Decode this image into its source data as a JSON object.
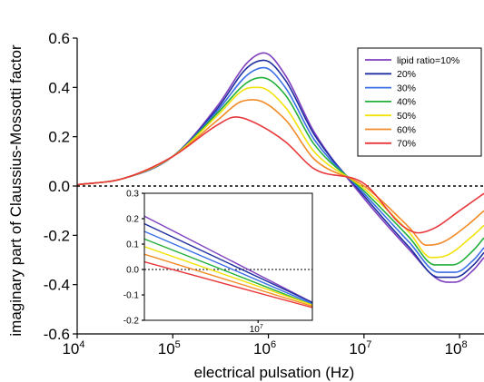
{
  "chart_data": [
    {
      "type": "line",
      "title": "",
      "xlabel": "electrical pulsation (Hz)",
      "ylabel": "imaginary part of Claussius-Mossotti factor",
      "xscale": "log",
      "xlim": [
        10000,
        180000000
      ],
      "ylim": [
        -0.6,
        0.6
      ],
      "xticks": [
        {
          "value": 10000,
          "base": "10",
          "exp": "4"
        },
        {
          "value": 100000,
          "base": "10",
          "exp": "5"
        },
        {
          "value": 1000000,
          "base": "10",
          "exp": "6"
        },
        {
          "value": 10000000,
          "base": "10",
          "exp": "7"
        },
        {
          "value": 100000000,
          "base": "10",
          "exp": "8"
        }
      ],
      "yticks": [
        {
          "value": -0.6,
          "label": "-0.6"
        },
        {
          "value": -0.4,
          "label": "-0.4"
        },
        {
          "value": -0.2,
          "label": "-0.2"
        },
        {
          "value": 0.0,
          "label": "0.0"
        },
        {
          "value": 0.2,
          "label": "0.2"
        },
        {
          "value": 0.4,
          "label": "0.4"
        },
        {
          "value": 0.6,
          "label": "0.6"
        }
      ],
      "reference_line": {
        "y": 0,
        "style": "dotted"
      },
      "grid": false,
      "legend_position": "top-right",
      "series": [
        {
          "name": "lipid ratio=10%",
          "color": "#7f3fbf",
          "x": [
            10000,
            30000,
            100000,
            300000,
            600000,
            900000,
            1500000,
            3000000,
            10000000,
            30000000,
            60000000,
            90000000,
            140000000,
            180000000
          ],
          "y": [
            0.005,
            0.03,
            0.12,
            0.33,
            0.5,
            0.54,
            0.45,
            0.22,
            -0.05,
            -0.26,
            -0.38,
            -0.39,
            -0.34,
            -0.29
          ]
        },
        {
          "name": "20%",
          "color": "#1f2f9f",
          "x": [
            10000,
            30000,
            100000,
            300000,
            600000,
            900000,
            1500000,
            3000000,
            10000000,
            30000000,
            60000000,
            90000000,
            140000000,
            180000000
          ],
          "y": [
            0.005,
            0.03,
            0.12,
            0.32,
            0.48,
            0.51,
            0.43,
            0.21,
            -0.04,
            -0.25,
            -0.37,
            -0.37,
            -0.32,
            -0.27
          ]
        },
        {
          "name": "30%",
          "color": "#3a6fe8",
          "x": [
            10000,
            30000,
            100000,
            300000,
            600000,
            900000,
            1500000,
            3000000,
            10000000,
            30000000,
            60000000,
            90000000,
            140000000,
            180000000
          ],
          "y": [
            0.005,
            0.03,
            0.12,
            0.31,
            0.45,
            0.48,
            0.4,
            0.19,
            -0.03,
            -0.23,
            -0.35,
            -0.35,
            -0.3,
            -0.25
          ]
        },
        {
          "name": "40%",
          "color": "#22b03a",
          "x": [
            10000,
            30000,
            100000,
            300000,
            600000,
            850000,
            1500000,
            3000000,
            10000000,
            30000000,
            55000000,
            85000000,
            140000000,
            180000000
          ],
          "y": [
            0.005,
            0.03,
            0.12,
            0.3,
            0.42,
            0.44,
            0.37,
            0.17,
            -0.02,
            -0.21,
            -0.32,
            -0.32,
            -0.26,
            -0.21
          ]
        },
        {
          "name": "50%",
          "color": "#f2e20a",
          "x": [
            10000,
            30000,
            100000,
            300000,
            550000,
            800000,
            1500000,
            3000000,
            10000000,
            30000000,
            50000000,
            75000000,
            130000000,
            180000000
          ],
          "y": [
            0.005,
            0.03,
            0.12,
            0.29,
            0.39,
            0.4,
            0.32,
            0.14,
            -0.01,
            -0.19,
            -0.29,
            -0.28,
            -0.21,
            -0.16
          ]
        },
        {
          "name": "60%",
          "color": "#f28c28",
          "x": [
            10000,
            30000,
            100000,
            300000,
            500000,
            700000,
            1500000,
            3000000,
            10000000,
            30000000,
            45000000,
            65000000,
            120000000,
            180000000
          ],
          "y": [
            0.005,
            0.03,
            0.12,
            0.27,
            0.34,
            0.35,
            0.27,
            0.11,
            0.0,
            -0.17,
            -0.24,
            -0.23,
            -0.16,
            -0.1
          ]
        },
        {
          "name": "70%",
          "color": "#e8373a",
          "x": [
            10000,
            30000,
            100000,
            300000,
            450000,
            600000,
            1500000,
            3000000,
            10000000,
            25000000,
            37000000,
            55000000,
            100000000,
            180000000
          ],
          "y": [
            0.005,
            0.03,
            0.12,
            0.25,
            0.28,
            0.27,
            0.18,
            0.07,
            0.01,
            -0.16,
            -0.19,
            -0.17,
            -0.1,
            -0.03
          ]
        }
      ]
    },
    {
      "type": "line",
      "title": "",
      "xscale": "log",
      "xlim": [
        1000000,
        30000000
      ],
      "ylim": [
        -0.2,
        0.3
      ],
      "xticks": [
        {
          "value": 10000000,
          "base": "10",
          "exp": "7"
        }
      ],
      "yticks": [
        {
          "value": -0.2,
          "label": "-0.2"
        },
        {
          "value": -0.1,
          "label": "-0.1"
        },
        {
          "value": 0.0,
          "label": "0.0"
        },
        {
          "value": 0.1,
          "label": "0.1"
        },
        {
          "value": 0.2,
          "label": "0.2"
        },
        {
          "value": 0.3,
          "label": "0.3"
        }
      ],
      "reference_line": {
        "y": 0,
        "style": "dotted"
      },
      "series": [
        {
          "color": "#7f3fbf",
          "x": [
            1000000,
            30000000
          ],
          "y": [
            0.21,
            -0.13
          ]
        },
        {
          "color": "#1f2f9f",
          "x": [
            1000000,
            30000000
          ],
          "y": [
            0.18,
            -0.13
          ]
        },
        {
          "color": "#3a6fe8",
          "x": [
            1000000,
            30000000
          ],
          "y": [
            0.15,
            -0.135
          ]
        },
        {
          "color": "#22b03a",
          "x": [
            1000000,
            30000000
          ],
          "y": [
            0.12,
            -0.14
          ]
        },
        {
          "color": "#f2e20a",
          "x": [
            1000000,
            30000000
          ],
          "y": [
            0.09,
            -0.14
          ]
        },
        {
          "color": "#f28c28",
          "x": [
            1000000,
            30000000
          ],
          "y": [
            0.06,
            -0.145
          ]
        },
        {
          "color": "#e8373a",
          "x": [
            1000000,
            30000000
          ],
          "y": [
            0.03,
            -0.15
          ]
        }
      ]
    }
  ]
}
